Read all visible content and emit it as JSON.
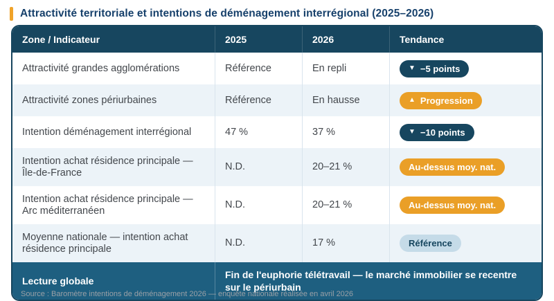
{
  "page": {
    "title": "Attractivité territoriale et intentions de déménagement interrégional (2025–2026)"
  },
  "colors": {
    "accent_orange": "#f0a32a",
    "header_bg": "#17465f",
    "footer_bg": "#1e5f80",
    "row_alt_bg": "#ecf3f8",
    "badge_navy_bg": "#17465f",
    "badge_orange_bg": "#ea9f27",
    "badge_light_bg": "#c5dbe8",
    "title_text": "#16406b"
  },
  "table": {
    "headers": [
      "Zone / Indicateur",
      "2025",
      "2026",
      "Tendance"
    ],
    "rows": [
      {
        "indicator": "Attractivité grandes agglomérations",
        "y2025": "Référence",
        "y2026": "En repli",
        "badge": {
          "icon": "▼",
          "label": "−5 points",
          "variant": "navy"
        }
      },
      {
        "indicator": "Attractivité zones périurbaines",
        "y2025": "Référence",
        "y2026": "En hausse",
        "badge": {
          "icon": "▲",
          "label": "Progression",
          "variant": "orange"
        }
      },
      {
        "indicator": "Intention déménagement interrégional",
        "y2025": "47 %",
        "y2026": "37 %",
        "badge": {
          "icon": "▼",
          "label": "−10 points",
          "variant": "navy"
        }
      },
      {
        "indicator": "Intention achat résidence principale — Île-de-France",
        "y2025": "N.D.",
        "y2026": "20–21 %",
        "badge": {
          "label": "Au-dessus moy. nat.",
          "variant": "orange"
        }
      },
      {
        "indicator": "Intention achat résidence principale — Arc méditerranéen",
        "y2025": "N.D.",
        "y2026": "20–21 %",
        "badge": {
          "label": "Au-dessus moy. nat.",
          "variant": "orange"
        }
      },
      {
        "indicator": "Moyenne nationale — intention achat résidence principale",
        "y2025": "N.D.",
        "y2026": "17 %",
        "badge": {
          "label": "Référence",
          "variant": "light"
        }
      }
    ],
    "footer": {
      "label": "Lecture globale",
      "text": "Fin de l'euphorie télétravail — le marché immobilier se recentre sur le périurbain"
    }
  },
  "caption": "Source : Baromètre intentions de déménagement 2026 — enquête nationale réalisée en avril 2026"
}
